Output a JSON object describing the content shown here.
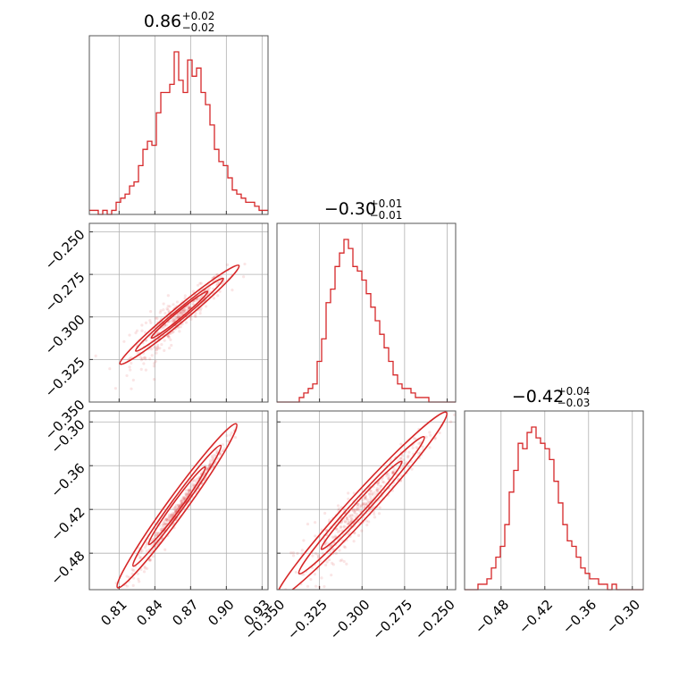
{
  "chart_data": {
    "type": "corner",
    "color": "#d62728",
    "parameters": [
      {
        "title": {
          "value": "0.86",
          "plus": "+0.02",
          "minus": "−0.02"
        },
        "range": [
          0.785,
          0.935
        ],
        "ticks": [
          0.81,
          0.84,
          0.87,
          0.9,
          0.93
        ],
        "tick_labels": [
          "0.81",
          "0.84",
          "0.87",
          "0.90",
          "0.93"
        ],
        "histogram": [
          1,
          1,
          0,
          1,
          0,
          1,
          3,
          4,
          5,
          7,
          8,
          12,
          16,
          18,
          17,
          25,
          30,
          30,
          32,
          40,
          33,
          30,
          38,
          34,
          36,
          30,
          27,
          22,
          16,
          13,
          12,
          9,
          6,
          5,
          4,
          3,
          3,
          2,
          1,
          1
        ]
      },
      {
        "title": {
          "value": "−0.30",
          "plus": "+0.01",
          "minus": "−0.01"
        },
        "range": [
          -0.35,
          -0.245
        ],
        "ticks": [
          -0.35,
          -0.325,
          -0.3,
          -0.275,
          -0.25
        ],
        "tick_labels": [
          "−0.350",
          "−0.325",
          "−0.300",
          "−0.275",
          "−0.250"
        ],
        "histogram": [
          0,
          0,
          0,
          0,
          0,
          1,
          2,
          3,
          4,
          9,
          14,
          22,
          25,
          30,
          33,
          36,
          34,
          30,
          29,
          27,
          24,
          21,
          18,
          15,
          12,
          9,
          6,
          4,
          3,
          3,
          2,
          1,
          1,
          1,
          0,
          0,
          0,
          0,
          0,
          0
        ]
      },
      {
        "title": {
          "value": "−0.42",
          "plus": "+0.04",
          "minus": "−0.03"
        },
        "range": [
          -0.53,
          -0.285
        ],
        "ticks": [
          -0.48,
          -0.42,
          -0.36,
          -0.3
        ],
        "tick_labels": [
          "−0.48",
          "−0.42",
          "−0.36",
          "−0.30"
        ],
        "histogram": [
          0,
          0,
          0,
          1,
          1,
          2,
          4,
          6,
          8,
          12,
          18,
          22,
          27,
          26,
          29,
          30,
          28,
          27,
          26,
          24,
          20,
          16,
          12,
          9,
          8,
          6,
          4,
          3,
          2,
          2,
          1,
          1,
          0,
          1,
          0,
          0,
          0,
          0,
          0,
          0
        ]
      }
    ],
    "relations": [
      {
        "x": 0,
        "y": 1,
        "slope": 0.58,
        "scatter": 0.004
      },
      {
        "x": 0,
        "y": 2,
        "slope": 2.25,
        "scatter": 0.005
      },
      {
        "x": 1,
        "y": 2,
        "slope": 2.55,
        "scatter": 0.012
      }
    ],
    "grid": true
  }
}
